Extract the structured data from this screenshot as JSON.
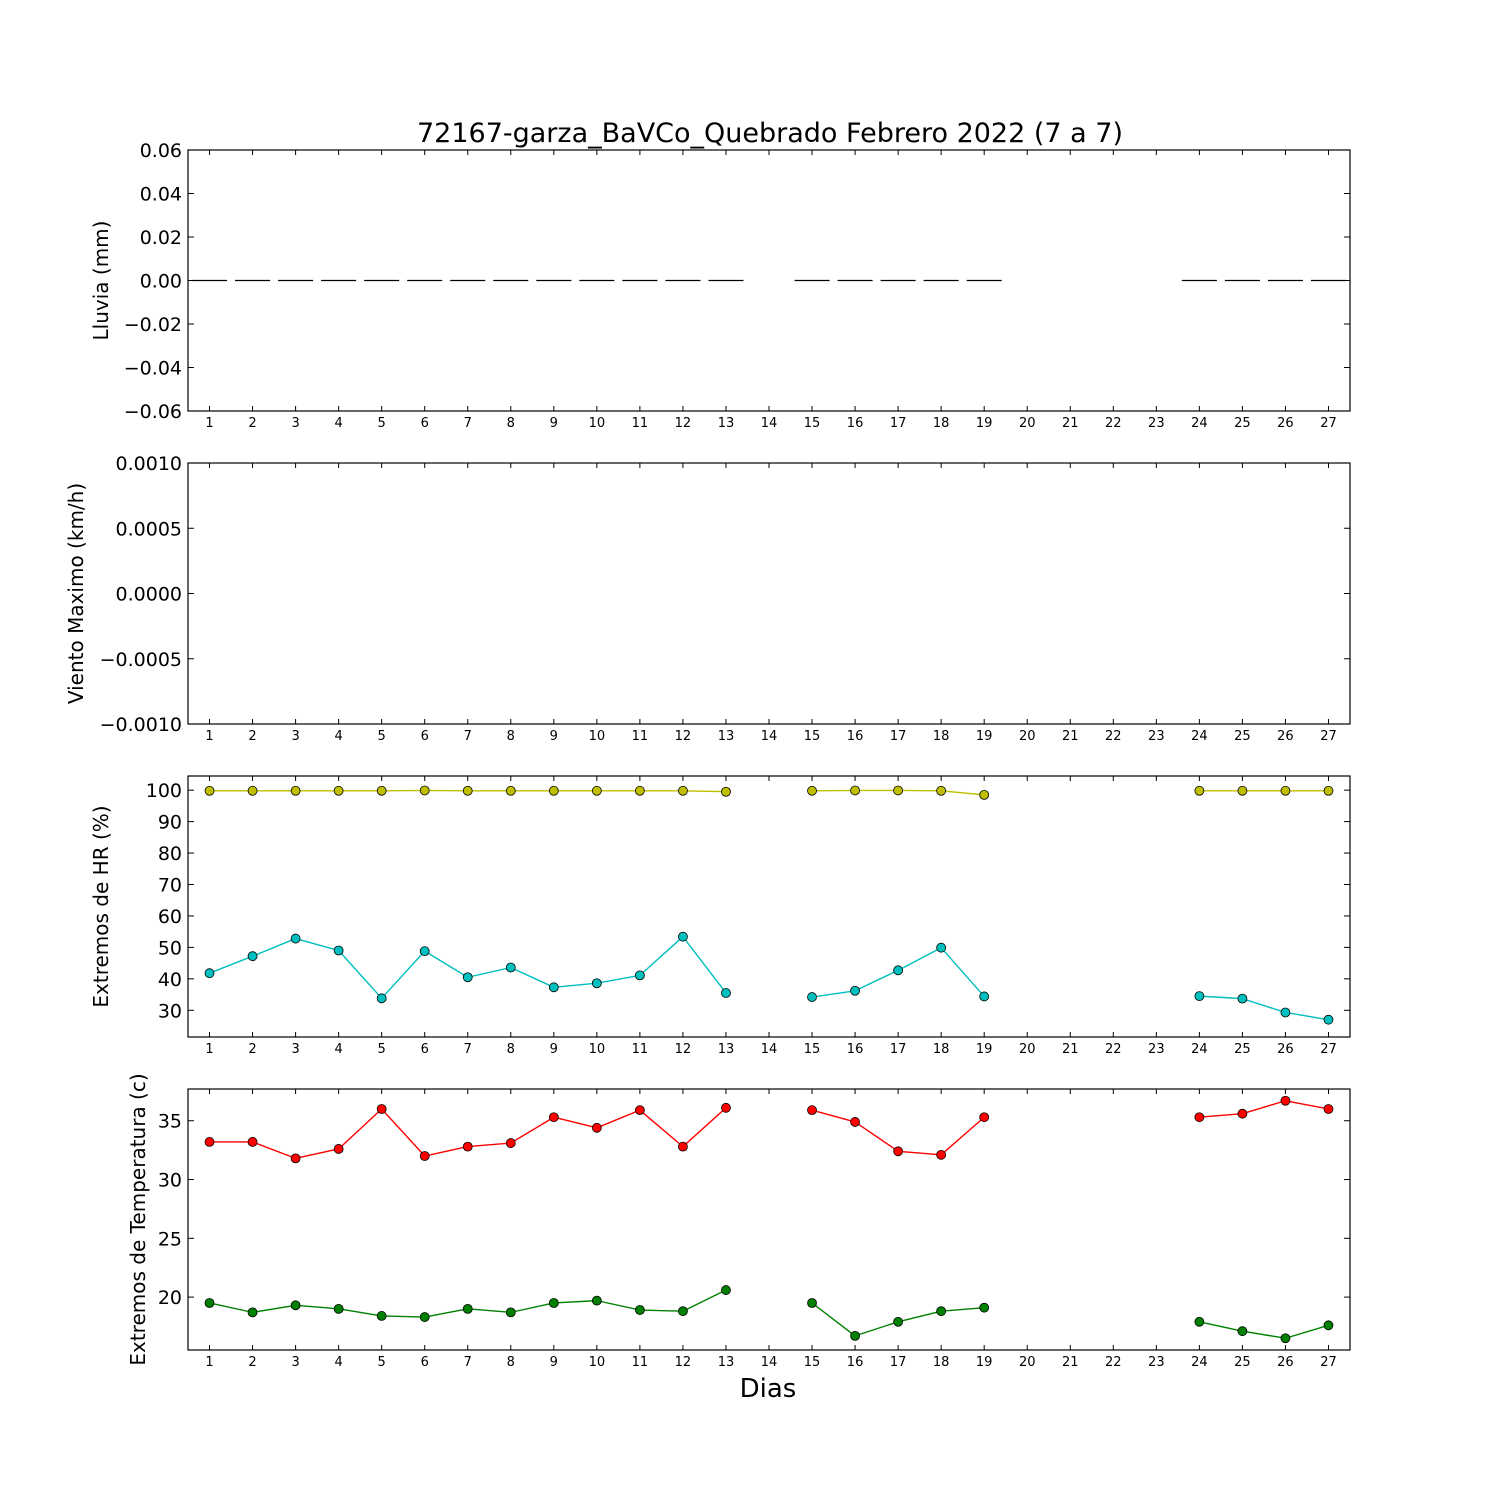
{
  "chart_data": {
    "title": "72167-garza_BaVCo_Quebrado Febrero 2022  (7 a 7)",
    "xlabel": "Dias",
    "x": [
      1,
      2,
      3,
      4,
      5,
      6,
      7,
      8,
      9,
      10,
      11,
      12,
      13,
      14,
      15,
      16,
      17,
      18,
      19,
      20,
      21,
      22,
      23,
      24,
      25,
      26,
      27
    ],
    "xlim": [
      0.5,
      27.5
    ],
    "panels": [
      {
        "type": "step",
        "ylabel": "Lluvia (mm)",
        "ylim": [
          -0.06,
          0.06
        ],
        "yticks": [
          0.06,
          0.04,
          0.02,
          0.0,
          -0.02,
          -0.04,
          -0.06
        ],
        "ytick_labels": [
          "0.06",
          "0.04",
          "0.02",
          "0.00",
          "−0.02",
          "−0.04",
          "−0.06"
        ],
        "series": [
          {
            "color": "#000000",
            "values": [
              0,
              0,
              0,
              0,
              0,
              0,
              0,
              0,
              0,
              0,
              0,
              0,
              0,
              null,
              0,
              0,
              0,
              0,
              0,
              null,
              null,
              null,
              null,
              0,
              0,
              0,
              0
            ]
          }
        ]
      },
      {
        "type": "empty",
        "ylabel": "Viento Maximo (km/h)",
        "ylim": [
          -0.001,
          0.001
        ],
        "yticks": [
          0.001,
          0.0005,
          0.0,
          -0.0005,
          -0.001
        ],
        "ytick_labels": [
          "0.0010",
          "0.0005",
          "0.0000",
          "−0.0005",
          "−0.0010"
        ],
        "series": []
      },
      {
        "type": "line",
        "ylabel": "Extremos de HR (%)",
        "ylim": [
          21.5,
          104.5
        ],
        "yticks": [
          100,
          90,
          80,
          70,
          60,
          50,
          40,
          30
        ],
        "ytick_labels": [
          "100",
          "90",
          "80",
          "70",
          "60",
          "50",
          "40",
          "30"
        ],
        "series": [
          {
            "color": "#bfbf00",
            "values": [
              99.8,
              99.8,
              99.8,
              99.8,
              99.8,
              99.9,
              99.8,
              99.8,
              99.8,
              99.8,
              99.8,
              99.8,
              99.5,
              null,
              99.8,
              99.9,
              99.9,
              99.8,
              98.5,
              null,
              null,
              null,
              null,
              99.8,
              99.8,
              99.8,
              99.8
            ]
          },
          {
            "color": "#00bfbf",
            "values": [
              41.8,
              47.2,
              52.8,
              49.0,
              33.8,
              48.8,
              40.5,
              43.6,
              37.3,
              38.6,
              41.1,
              53.4,
              35.5,
              null,
              34.2,
              36.2,
              42.7,
              49.9,
              34.4,
              null,
              null,
              null,
              null,
              34.5,
              33.7,
              29.3,
              27.0
            ]
          }
        ]
      },
      {
        "type": "line",
        "ylabel": "Extremos de Temperatura (c)",
        "ylim": [
          15.5,
          37.7
        ],
        "yticks": [
          35,
          30,
          25,
          20
        ],
        "ytick_labels": [
          "35",
          "30",
          "25",
          "20"
        ],
        "series": [
          {
            "color": "#ff0000",
            "values": [
              33.2,
              33.2,
              31.8,
              32.6,
              36.0,
              32.0,
              32.8,
              33.1,
              35.3,
              34.4,
              35.9,
              32.8,
              36.1,
              null,
              35.9,
              34.9,
              32.4,
              32.1,
              35.3,
              null,
              null,
              null,
              null,
              35.3,
              35.6,
              36.7,
              36.0
            ]
          },
          {
            "color": "#008000",
            "values": [
              19.5,
              18.7,
              19.3,
              19.0,
              18.4,
              18.3,
              19.0,
              18.7,
              19.5,
              19.7,
              18.9,
              18.8,
              20.6,
              null,
              19.5,
              16.7,
              17.9,
              18.8,
              19.1,
              null,
              null,
              null,
              null,
              17.9,
              17.1,
              16.5,
              17.6
            ]
          }
        ]
      }
    ]
  }
}
